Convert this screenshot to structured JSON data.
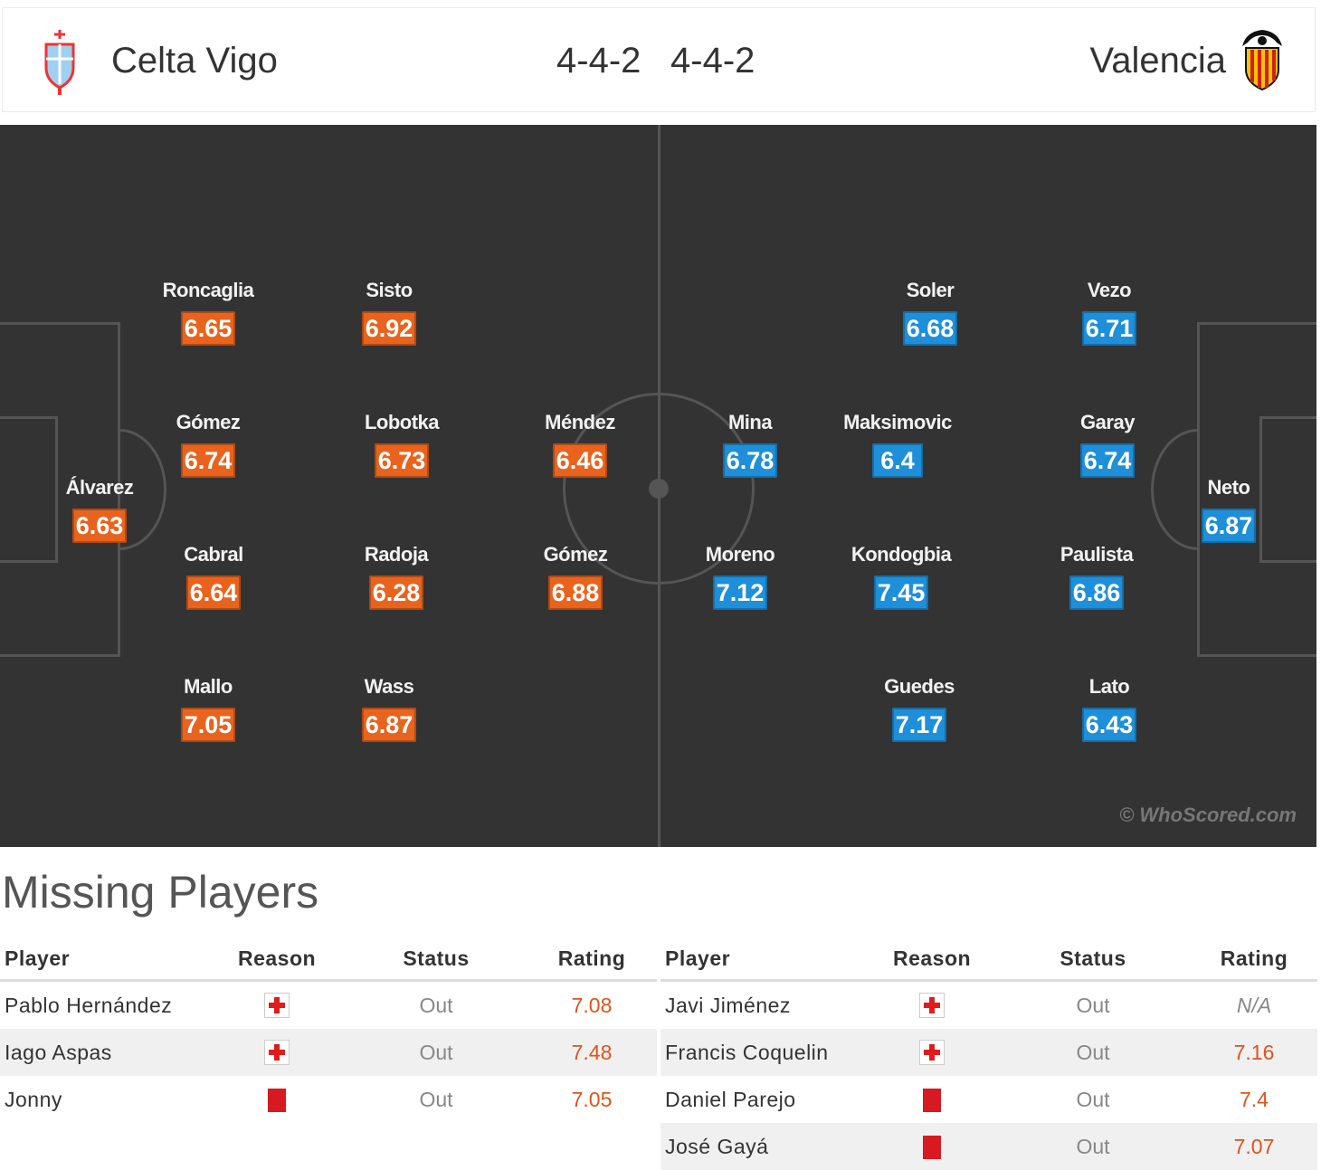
{
  "match": {
    "home": {
      "name": "Celta Vigo",
      "formation": "4-4-2"
    },
    "away": {
      "name": "Valencia",
      "formation": "4-4-2"
    }
  },
  "colors": {
    "home_rating": "#e8641e",
    "away_rating": "#1e8fd8",
    "pitch": "#333333"
  },
  "pitch": {
    "watermark": "© WhoScored.com",
    "home_players": [
      {
        "name": "Roncaglia",
        "rating": "6.65"
      },
      {
        "name": "Sisto",
        "rating": "6.92"
      },
      {
        "name": "Gómez",
        "rating": "6.74"
      },
      {
        "name": "Lobotka",
        "rating": "6.73"
      },
      {
        "name": "Méndez",
        "rating": "6.46"
      },
      {
        "name": "Álvarez",
        "rating": "6.63"
      },
      {
        "name": "Cabral",
        "rating": "6.64"
      },
      {
        "name": "Radoja",
        "rating": "6.28"
      },
      {
        "name": "Gómez",
        "rating": "6.88"
      },
      {
        "name": "Mallo",
        "rating": "7.05"
      },
      {
        "name": "Wass",
        "rating": "6.87"
      }
    ],
    "away_players": [
      {
        "name": "Soler",
        "rating": "6.68"
      },
      {
        "name": "Vezo",
        "rating": "6.71"
      },
      {
        "name": "Mina",
        "rating": "6.78"
      },
      {
        "name": "Maksimovic",
        "rating": "6.4"
      },
      {
        "name": "Garay",
        "rating": "6.74"
      },
      {
        "name": "Neto",
        "rating": "6.87"
      },
      {
        "name": "Moreno",
        "rating": "7.12"
      },
      {
        "name": "Kondogbia",
        "rating": "7.45"
      },
      {
        "name": "Paulista",
        "rating": "6.86"
      },
      {
        "name": "Guedes",
        "rating": "7.17"
      },
      {
        "name": "Lato",
        "rating": "6.43"
      }
    ]
  },
  "missing": {
    "title": "Missing Players",
    "headers": {
      "player": "Player",
      "reason": "Reason",
      "status": "Status",
      "rating": "Rating"
    },
    "home": [
      {
        "player": "Pablo Hernández",
        "reason_icon": "injury-icon",
        "status": "Out",
        "rating": "7.08"
      },
      {
        "player": "Iago Aspas",
        "reason_icon": "injury-icon",
        "status": "Out",
        "rating": "7.48"
      },
      {
        "player": "Jonny",
        "reason_icon": "red-card-icon",
        "status": "Out",
        "rating": "7.05"
      }
    ],
    "away": [
      {
        "player": "Javi Jiménez",
        "reason_icon": "injury-icon",
        "status": "Out",
        "rating": "N/A"
      },
      {
        "player": "Francis Coquelin",
        "reason_icon": "injury-icon",
        "status": "Out",
        "rating": "7.16"
      },
      {
        "player": "Daniel Parejo",
        "reason_icon": "red-card-icon",
        "status": "Out",
        "rating": "7.4"
      },
      {
        "player": "José Gayá",
        "reason_icon": "red-card-icon",
        "status": "Out",
        "rating": "7.07"
      }
    ]
  }
}
